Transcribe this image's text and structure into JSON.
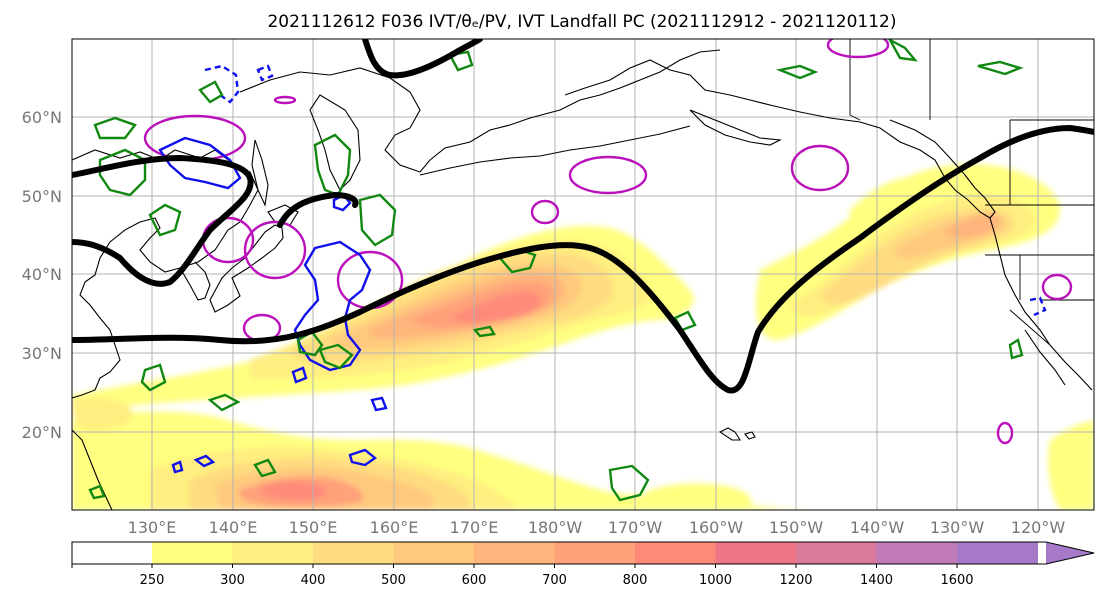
{
  "title": "2021112612 F036 IVT/θₑ/PV, IVT Landfall PC (2021112912 - 2021120112)",
  "map": {
    "lat_labels": [
      "60°N",
      "50°N",
      "40°N",
      "30°N",
      "20°N"
    ],
    "lon_labels": [
      "130°E",
      "140°E",
      "150°E",
      "160°E",
      "170°E",
      "180°W",
      "170°W",
      "160°W",
      "150°W",
      "140°W",
      "130°W",
      "120°W"
    ],
    "extent": {
      "lon_min": 120,
      "lon_max": 247,
      "lat_min": 10,
      "lat_max": 70
    }
  },
  "colorbar": {
    "ticks": [
      "250",
      "300",
      "400",
      "500",
      "600",
      "700",
      "800",
      "1000",
      "1200",
      "1400",
      "1600"
    ],
    "colors": [
      "#ffff80",
      "#ffee80",
      "#ffdc80",
      "#ffc97d",
      "#ffb57b",
      "#ffa17a",
      "#ff8a7a",
      "#f07585",
      "#dc7a9c",
      "#c07ab8",
      "#a67ac8"
    ],
    "extend": "max"
  },
  "colors": {
    "ivt_levels": [
      "#ffff80",
      "#ffee80",
      "#ffdc80",
      "#ffc97d",
      "#ffb57b",
      "#ffa17a",
      "#ff8a7a"
    ],
    "pv_positive": "#118811",
    "pv_negative": "#1010ee",
    "theta_e": "#bb11bb",
    "jet": "#000000"
  }
}
